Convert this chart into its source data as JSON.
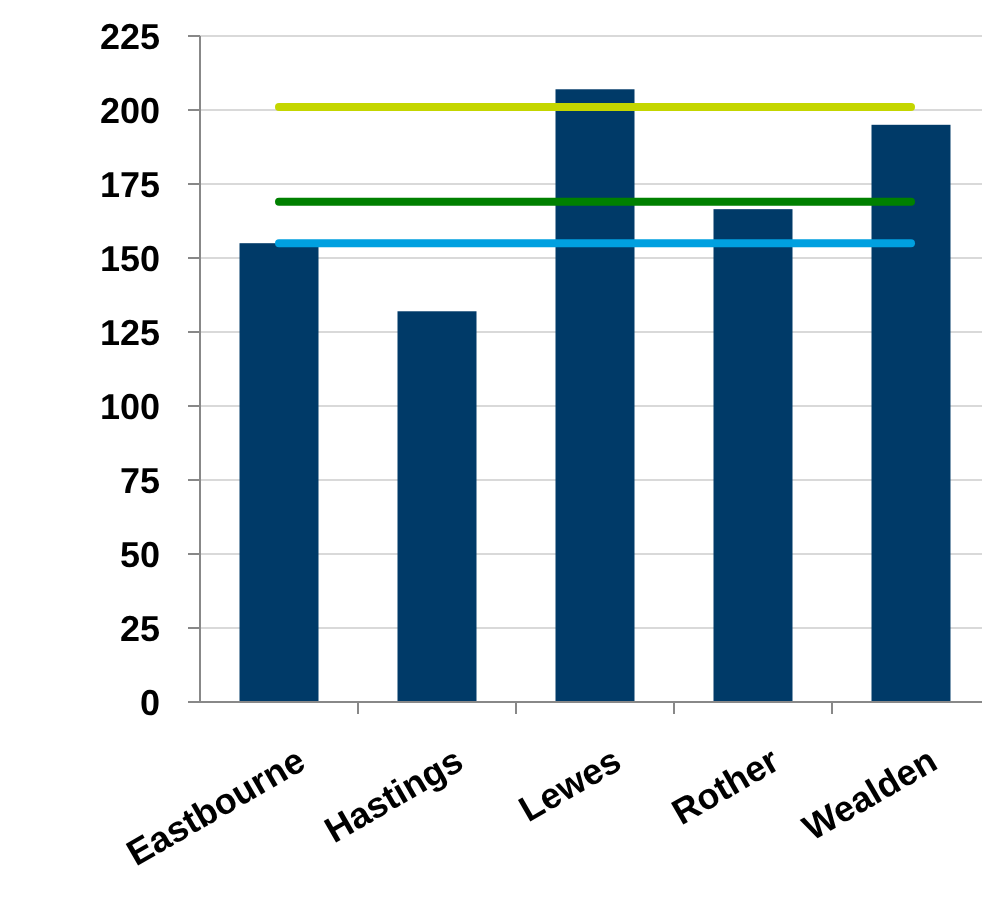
{
  "chart_data": {
    "type": "bar",
    "categories": [
      "Eastbourne",
      "Hastings",
      "Lewes",
      "Rother",
      "Wealden"
    ],
    "series": [
      {
        "color": "#003a68",
        "values": [
          155,
          132,
          207,
          166.5,
          195
        ]
      },
      {
        "type": "line",
        "color": "#c4d600",
        "values": [
          201,
          201,
          201,
          201,
          201
        ]
      },
      {
        "type": "line",
        "color": "#008000",
        "values": [
          169,
          169,
          169,
          169,
          169
        ]
      },
      {
        "type": "line",
        "color": "#00a0e0",
        "values": [
          155,
          155,
          155,
          155,
          155
        ]
      }
    ],
    "ylim": [
      0,
      225
    ],
    "yticks": [
      0,
      25,
      50,
      75,
      100,
      125,
      150,
      175,
      200,
      225
    ],
    "grid": "y",
    "marker": "none",
    "line_style": "solid"
  }
}
